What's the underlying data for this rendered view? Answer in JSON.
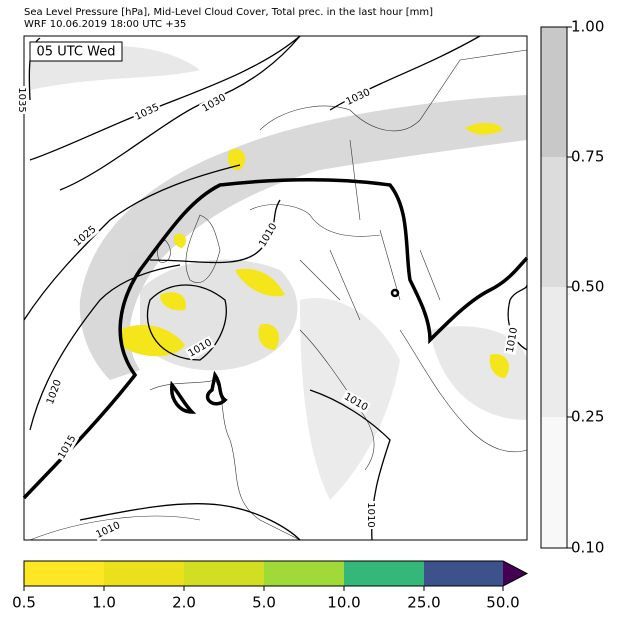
{
  "header": {
    "title_line1": "Sea Level Pressure [hPa], Mid-Level Cloud Cover, Total prec. in the last hour [mm]",
    "title_line2": "WRF 10.06.2019 18:00 UTC +35"
  },
  "map": {
    "time_label": "05 UTC Wed",
    "isobar_labels": [
      "1035",
      "1035",
      "1030",
      "1030",
      "1025",
      "1020",
      "1015",
      "1010",
      "1010",
      "1010",
      "1010",
      "1010",
      "1010"
    ]
  },
  "cloud_colorbar": {
    "ticks": [
      "1.00",
      "0.75",
      "0.50",
      "0.25",
      "0.10"
    ]
  },
  "precip_colorbar": {
    "ticks": [
      "0.5",
      "1.0",
      "2.0",
      "5.0",
      "10.0",
      "25.0",
      "50.0"
    ]
  }
}
